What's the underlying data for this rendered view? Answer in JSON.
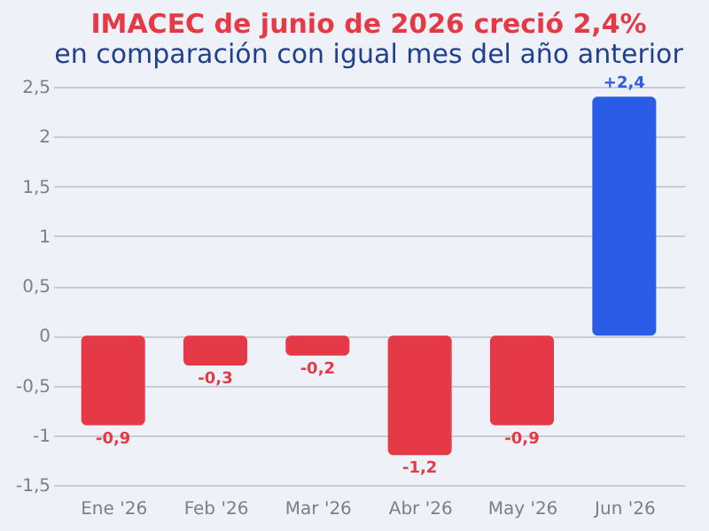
{
  "chart_data": {
    "type": "bar",
    "title": "IMACEC de junio de 2026 creció 2,4%",
    "subtitle": "en comparación con igual mes del año anterior",
    "categories": [
      "Ene '26",
      "Feb '26",
      "Mar '26",
      "Abr '26",
      "May '26",
      "Jun '26"
    ],
    "values": [
      -0.9,
      -0.3,
      -0.2,
      -1.2,
      -0.9,
      2.4
    ],
    "colors": [
      "#e63946",
      "#e63946",
      "#e63946",
      "#e63946",
      "#e63946",
      "#2b5ce6"
    ],
    "value_labels": [
      "-0,9",
      "-0,3",
      "-0,2",
      "-1,2",
      "-0,9",
      "+2,4"
    ],
    "ylim": [
      -1.5,
      2.5
    ],
    "yticks": [
      {
        "value": -1.5,
        "label": "-1,5"
      },
      -1,
      {
        "value": -0.5,
        "label": "-0,5"
      },
      0,
      {
        "value": 0.5,
        "label": "0,5"
      },
      1,
      {
        "value": 1.5,
        "label": "1,5"
      },
      2,
      {
        "value": 2.5,
        "label": "2,5"
      }
    ],
    "grid": "y"
  }
}
